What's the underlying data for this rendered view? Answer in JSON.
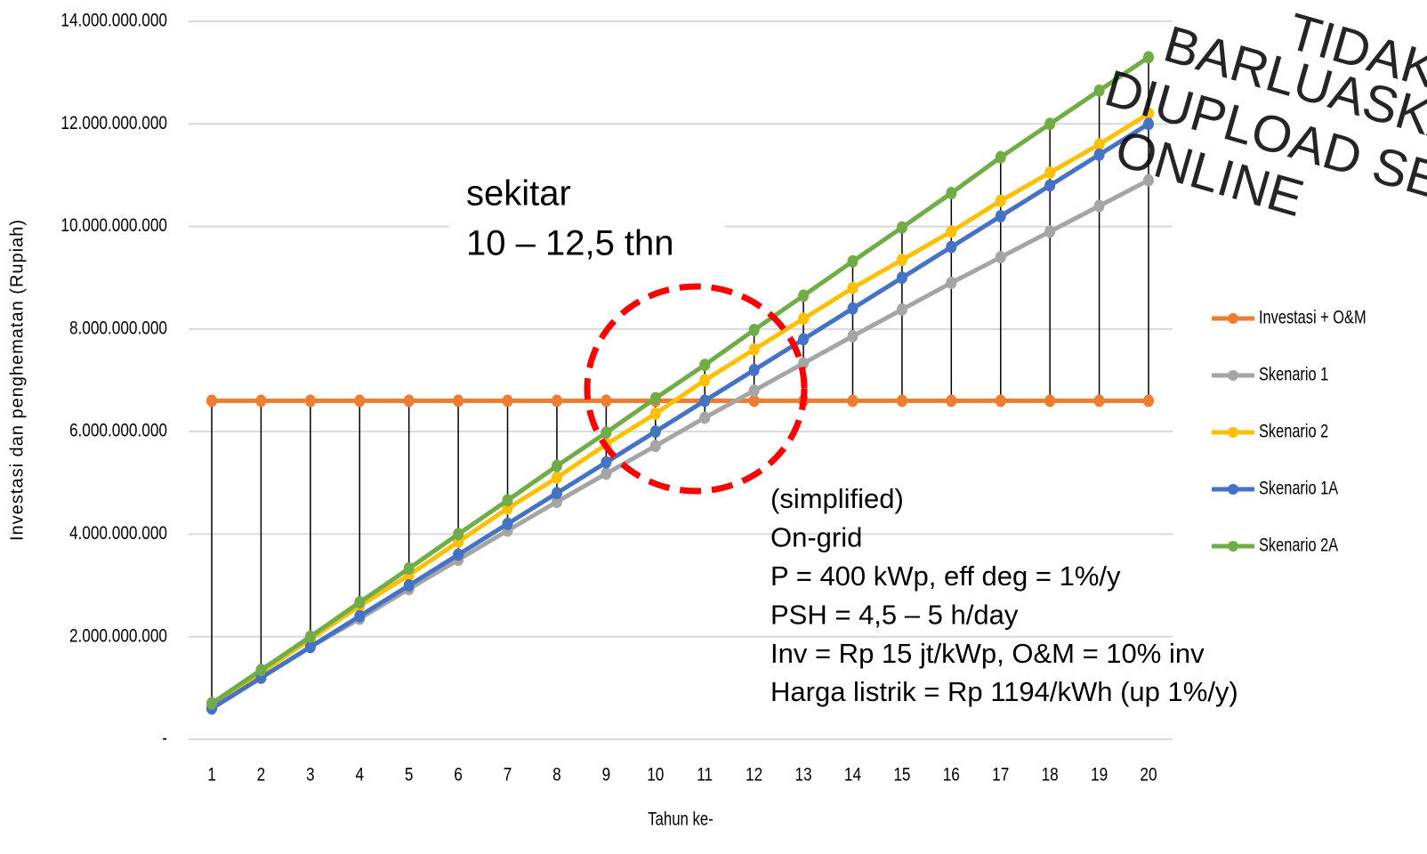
{
  "chart_data": {
    "type": "line",
    "y_label": "Investasi dan penghematan (Rupiah)",
    "x_label": "Tahun ke-",
    "categories": [
      "1",
      "2",
      "3",
      "4",
      "5",
      "6",
      "7",
      "8",
      "9",
      "10",
      "11",
      "12",
      "13",
      "14",
      "15",
      "16",
      "17",
      "18",
      "19",
      "20"
    ],
    "series": [
      {
        "name": "Investasi + O&M",
        "color": "#ed7d31",
        "values": [
          6600000000,
          6600000000,
          6600000000,
          6600000000,
          6600000000,
          6600000000,
          6600000000,
          6600000000,
          6600000000,
          6600000000,
          6600000000,
          6600000000,
          6600000000,
          6600000000,
          6600000000,
          6600000000,
          6600000000,
          6600000000,
          6600000000,
          6600000000
        ]
      },
      {
        "name": "Skenario 1",
        "color": "#a5a5a5",
        "values": [
          600000000,
          1200000000,
          1800000000,
          2350000000,
          2930000000,
          3500000000,
          4070000000,
          4630000000,
          5180000000,
          5720000000,
          6270000000,
          6800000000,
          7330000000,
          7860000000,
          8380000000,
          8900000000,
          9400000000,
          9900000000,
          10400000000,
          10900000000
        ]
      },
      {
        "name": "Skenario 2",
        "color": "#ffc000",
        "values": [
          670000000,
          1300000000,
          1950000000,
          2600000000,
          3200000000,
          3850000000,
          4500000000,
          5100000000,
          5750000000,
          6350000000,
          7000000000,
          7600000000,
          8200000000,
          8800000000,
          9350000000,
          9900000000,
          10500000000,
          11050000000,
          11600000000,
          12200000000
        ]
      },
      {
        "name": "Skenario 1A",
        "color": "#4472c4",
        "values": [
          600000000,
          1200000000,
          1800000000,
          2400000000,
          3000000000,
          3600000000,
          4200000000,
          4800000000,
          5400000000,
          6000000000,
          6600000000,
          7200000000,
          7800000000,
          8400000000,
          9000000000,
          9600000000,
          10200000000,
          10800000000,
          11400000000,
          12000000000
        ]
      },
      {
        "name": "Skenario 2A",
        "color": "#70ad47",
        "values": [
          700000000,
          1350000000,
          2000000000,
          2670000000,
          3330000000,
          4000000000,
          4660000000,
          5330000000,
          5980000000,
          6650000000,
          7300000000,
          7980000000,
          8650000000,
          9320000000,
          9980000000,
          10650000000,
          11350000000,
          12000000000,
          12650000000,
          13300000000
        ]
      }
    ],
    "ylim": [
      0,
      14000000000
    ],
    "yticks": [
      {
        "value": 0,
        "label": "-"
      },
      {
        "value": 2000000000,
        "label": "2.000.000.000"
      },
      {
        "value": 4000000000,
        "label": "4.000.000.000"
      },
      {
        "value": 6000000000,
        "label": "6.000.000.000"
      },
      {
        "value": 8000000000,
        "label": "8.000.000.000"
      },
      {
        "value": 10000000000,
        "label": "10.000.000.000"
      },
      {
        "value": 12000000000,
        "label": "12.000.000.000"
      },
      {
        "value": 14000000000,
        "label": "14.000.000.000"
      }
    ],
    "grid": true,
    "legend": "right",
    "callout": [
      "sekitar",
      "10 – 12,5 thn"
    ],
    "notes": [
      "(simplified)",
      "On-grid",
      "P = 400 kWp, eff deg = 1%/y",
      "PSH = 4,5 – 5 h/day",
      "Inv = Rp 15 jt/kWp, O&M = 10% inv",
      "Harga listrik = Rp 1194/kWh (up 1%/y)"
    ],
    "watermark": [
      "TIDAK D",
      "BARLUASKAN",
      "DIUPLOAD SECAR",
      "ONLINE"
    ]
  }
}
